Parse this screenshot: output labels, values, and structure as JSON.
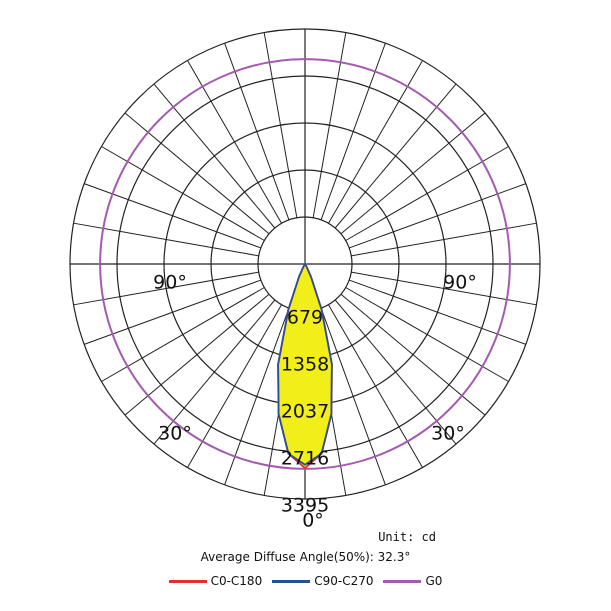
{
  "chart_data": {
    "type": "polar",
    "title": "",
    "unit_label": "Unit: cd",
    "note": "Average Diffuse Angle(50%): 32.3°",
    "radial_ticks": [
      "679",
      "1358",
      "2037",
      "2716",
      "3395"
    ],
    "r_max": 3395,
    "angle_labels": {
      "bottom": "0°",
      "lower_left": "30°",
      "lower_right": "30°",
      "left": "90°",
      "right": "90°"
    },
    "series": [
      {
        "name": "C0-C180",
        "color": "#e03030",
        "angles": [
          -180,
          -40,
          -30,
          -25,
          -20,
          -15,
          -10,
          -5,
          0,
          5,
          10,
          15,
          20,
          25,
          30,
          40,
          180
        ],
        "values": [
          0,
          0,
          40,
          200,
          700,
          1500,
          2200,
          2750,
          2950,
          2750,
          2200,
          1500,
          700,
          200,
          40,
          0,
          0
        ]
      },
      {
        "name": "C90-C270",
        "color": "#2a4f9a",
        "angles": [
          -180,
          -40,
          -30,
          -25,
          -20,
          -15,
          -10,
          -5,
          0,
          5,
          10,
          15,
          20,
          25,
          30,
          40,
          180
        ],
        "values": [
          0,
          0,
          40,
          200,
          700,
          1500,
          2200,
          2750,
          2900,
          2750,
          2200,
          1500,
          700,
          200,
          40,
          0,
          0
        ]
      },
      {
        "name": "G0",
        "color": "#a45ab0",
        "angles": [
          0,
          90,
          180,
          270
        ],
        "values": [
          2960,
          2960,
          2960,
          2960
        ]
      }
    ]
  }
}
